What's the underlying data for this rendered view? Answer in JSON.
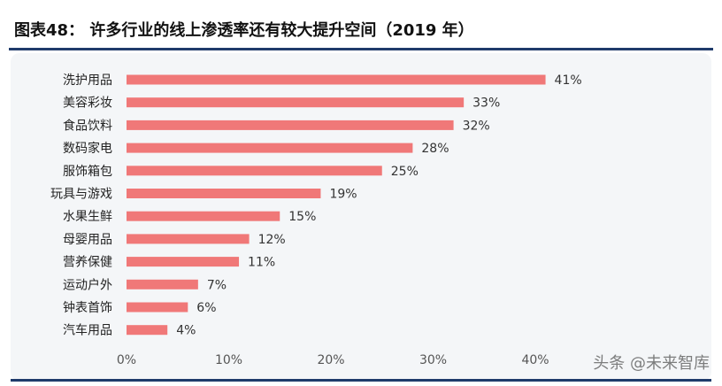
{
  "title": "图表48： 许多行业的线上渗透率还有较大提升空间（2019 年）",
  "watermark": "头条 @未来智库",
  "colors": {
    "bar": "#f07878",
    "axis_text": "#555555",
    "accent": "#1f3b6b"
  },
  "chart_data": {
    "type": "bar",
    "orientation": "horizontal",
    "categories": [
      "洗护用品",
      "美容彩妆",
      "食品饮料",
      "数码家电",
      "服饰箱包",
      "玩具与游戏",
      "水果生鲜",
      "母婴用品",
      "营养保健",
      "运动户外",
      "钟表首饰",
      "汽车用品"
    ],
    "values": [
      41,
      33,
      32,
      28,
      25,
      19,
      15,
      12,
      11,
      7,
      6,
      4
    ],
    "data_labels": [
      "41%",
      "33%",
      "32%",
      "28%",
      "25%",
      "19%",
      "15%",
      "12%",
      "11%",
      "7%",
      "6%",
      "4%"
    ],
    "xlim": [
      0,
      40
    ],
    "x_ticks": [
      "0%",
      "10%",
      "20%",
      "30%",
      "40%"
    ],
    "grid": false,
    "legend": "none"
  }
}
